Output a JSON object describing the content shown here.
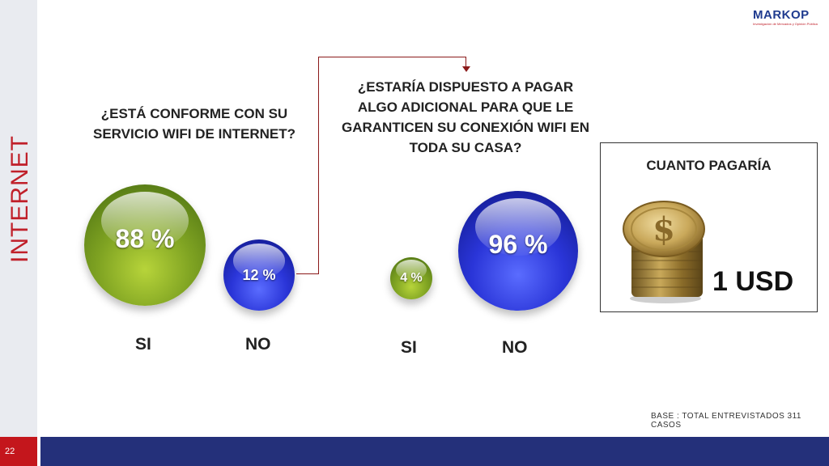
{
  "section": {
    "label": "INTERNET"
  },
  "logo": {
    "name": "MARKOP",
    "tagline": "Investigación de Mercados y Opinión Pública"
  },
  "questions": {
    "q1": "¿ESTÁ CONFORME CON SU SERVICIO WIFI DE INTERNET?",
    "q2": "¿ESTARÍA DISPUESTO A PAGAR ALGO ADICIONAL PARA QUE LE GARANTICEN SU CONEXIÓN WIFI EN TODA SU CASA?"
  },
  "chart_data": [
    {
      "type": "bubble",
      "title": "¿ESTÁ CONFORME CON SU SERVICIO WIFI DE INTERNET?",
      "categories": [
        "SI",
        "NO"
      ],
      "values": [
        88,
        12
      ],
      "labels": [
        "88 %",
        "12 %"
      ],
      "colors": [
        "#7fa322",
        "#2a35d8"
      ]
    },
    {
      "type": "bubble",
      "title": "¿ESTARÍA DISPUESTO A PAGAR ALGO ADICIONAL PARA QUE LE GARANTICEN SU CONEXIÓN WIFI EN TODA SU CASA?",
      "categories": [
        "SI",
        "NO"
      ],
      "values": [
        4,
        96
      ],
      "labels": [
        "4 %",
        "96 %"
      ],
      "colors": [
        "#7fa322",
        "#2a35d8"
      ]
    }
  ],
  "pay_box": {
    "title": "CUANTO PAGARÍA",
    "value": "1 USD",
    "icon": "coin-stack-icon"
  },
  "footer": {
    "base_note": "BASE    : TOTAL ENTREVISTADOS 311 CASOS",
    "page_number": "22"
  },
  "colors": {
    "accent_red": "#c0202a",
    "footer_blue": "#24307a",
    "green": "#7fa322",
    "blue": "#2a35d8"
  }
}
